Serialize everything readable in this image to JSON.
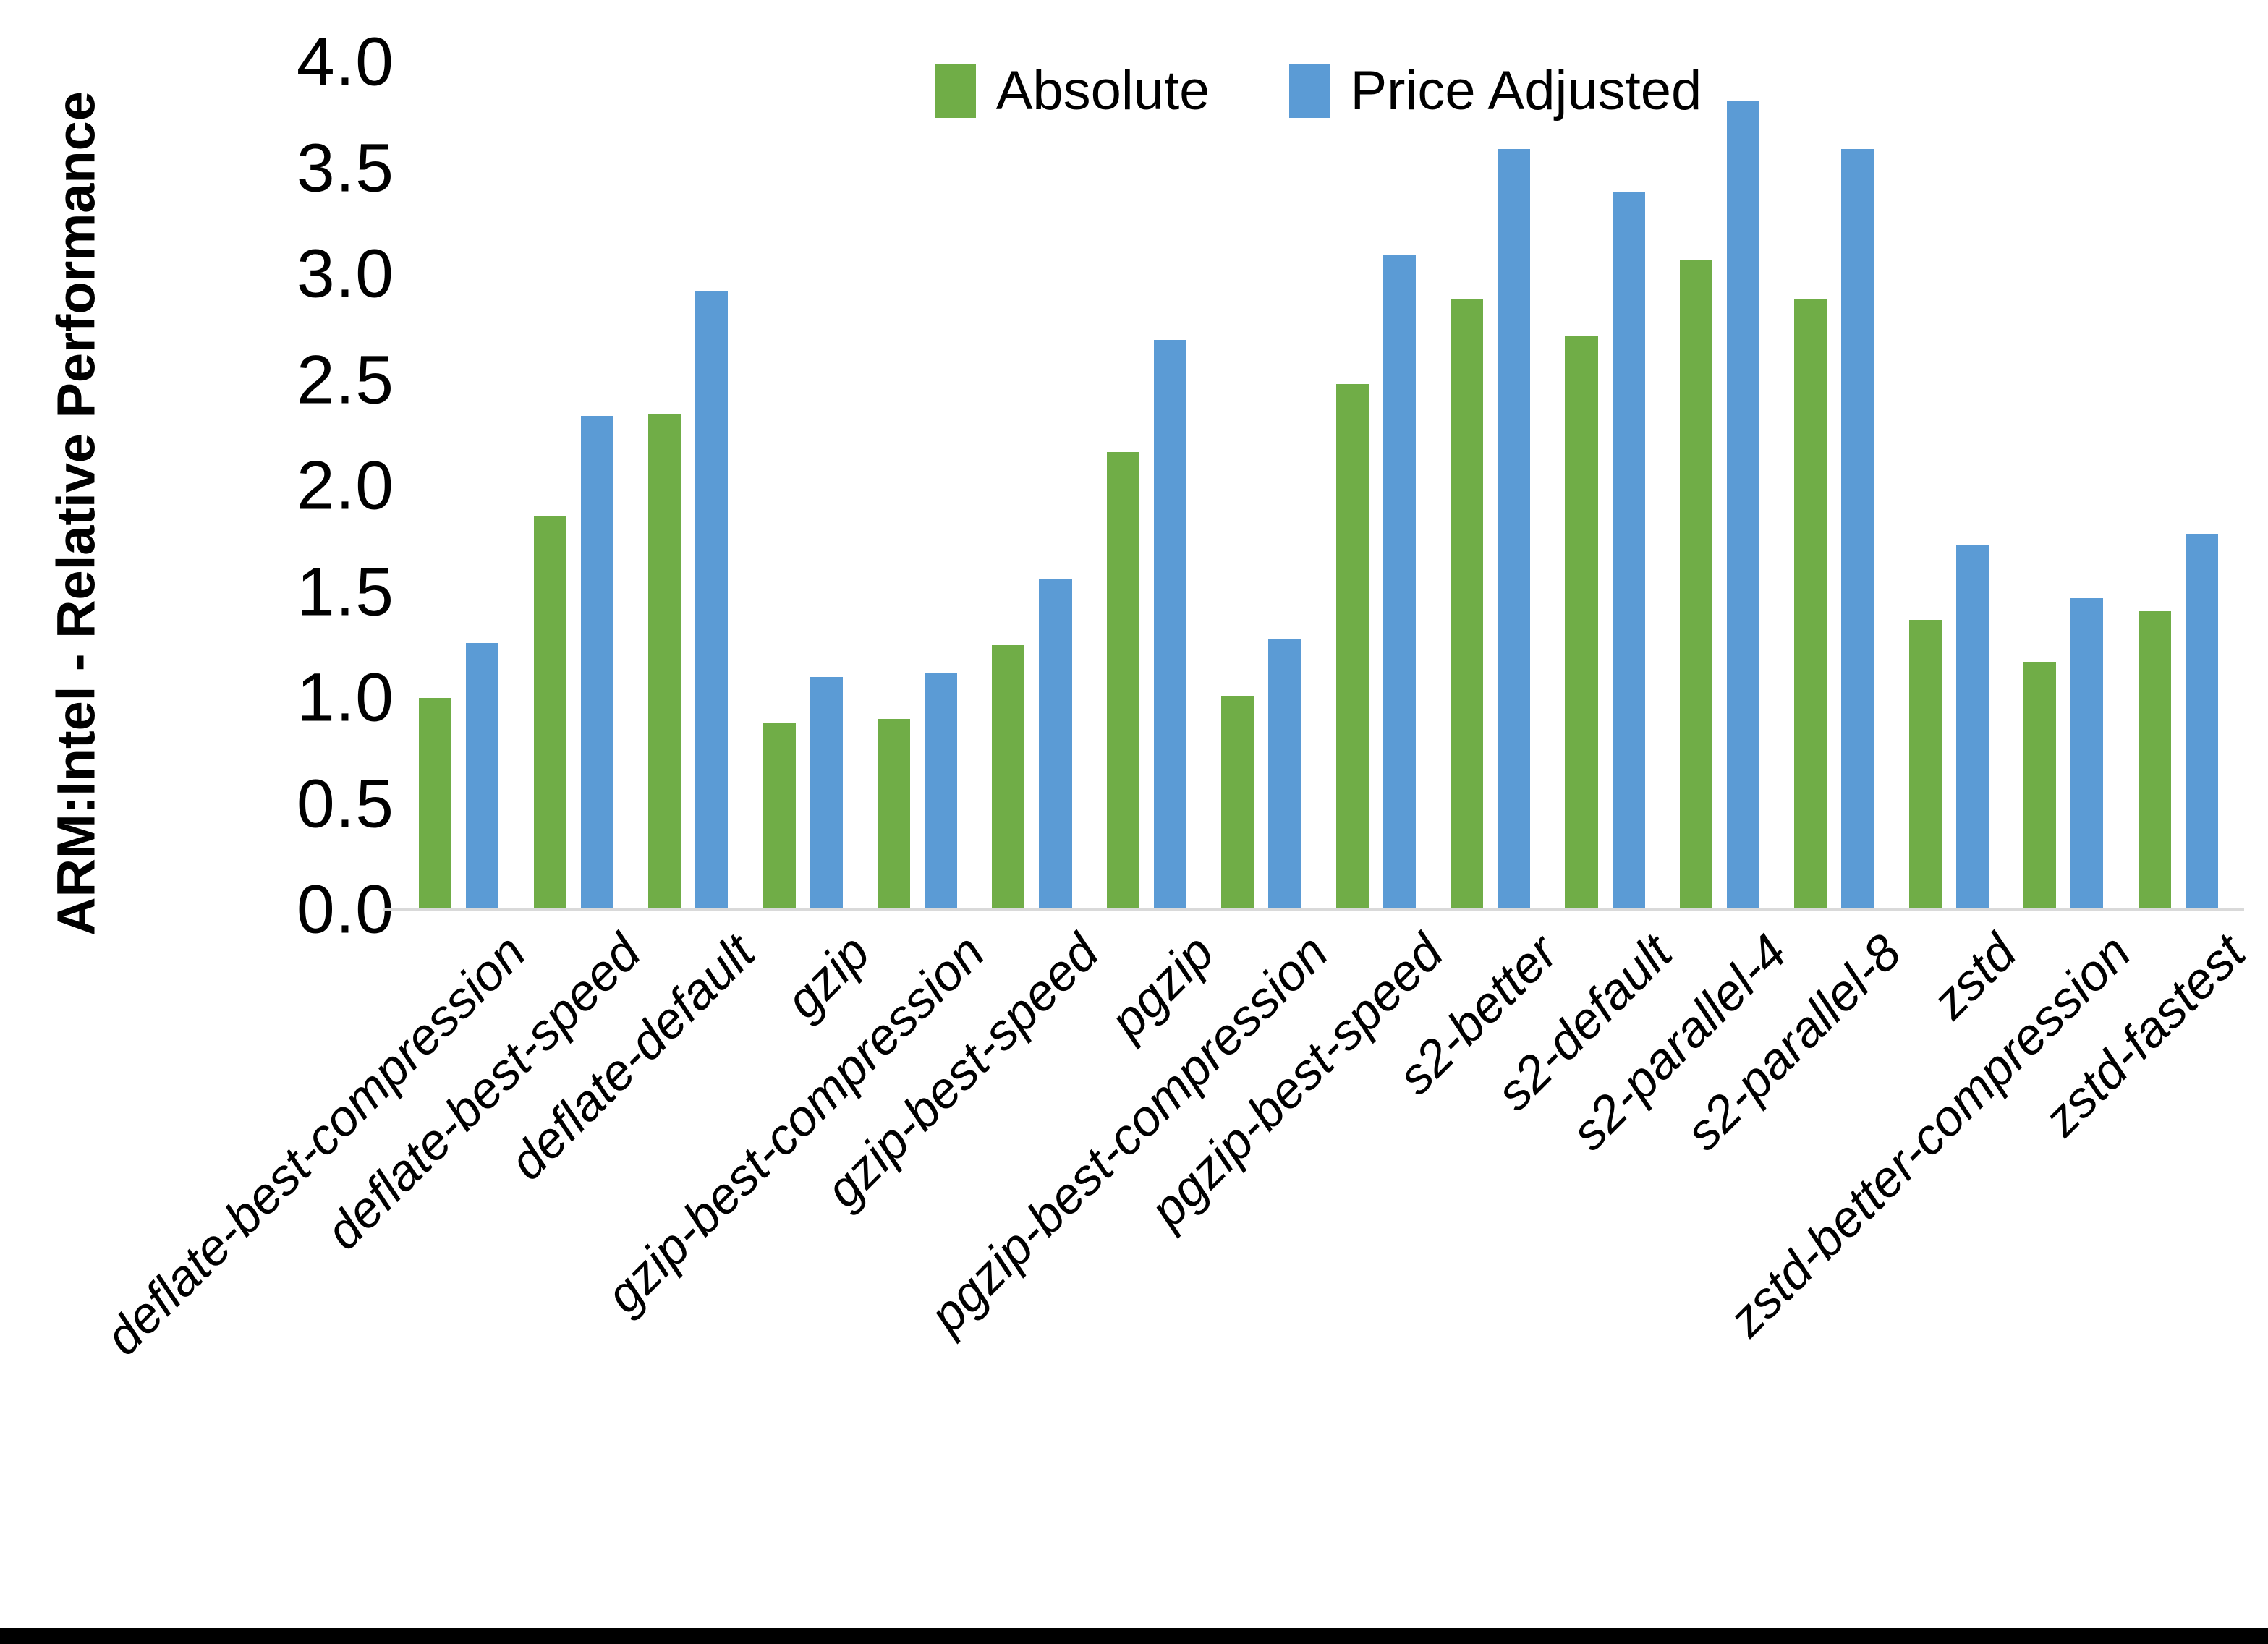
{
  "chart_data": {
    "type": "bar",
    "title": "",
    "xlabel": "",
    "ylabel": "ARM:Intel - Relative Performance",
    "ylim": [
      0.0,
      4.0
    ],
    "y_ticks": [
      "0.0",
      "0.5",
      "1.0",
      "1.5",
      "2.0",
      "2.5",
      "3.0",
      "3.5",
      "4.0"
    ],
    "grid": false,
    "legend_position": "top-center",
    "categories": [
      "deflate-best-compression",
      "deflate-best-speed",
      "deflate-default",
      "gzip",
      "gzip-best-compression",
      "gzip-best-speed",
      "pgzip",
      "pgzip-best-compression",
      "pgzip-best-speed",
      "s2-better",
      "s2-default",
      "s2-parallel-4",
      "s2-parallel-8",
      "zstd",
      "zstd-better-compression",
      "zstd-fastest"
    ],
    "series": [
      {
        "name": "Absolute",
        "color": "#70AD47",
        "values": [
          1.0,
          1.86,
          2.34,
          0.88,
          0.9,
          1.25,
          2.16,
          1.01,
          2.48,
          2.88,
          2.71,
          3.07,
          2.88,
          1.37,
          1.17,
          1.41
        ]
      },
      {
        "name": "Price Adjusted",
        "color": "#5B9BD5",
        "values": [
          1.26,
          2.33,
          2.92,
          1.1,
          1.12,
          1.56,
          2.69,
          1.28,
          3.09,
          3.59,
          3.39,
          3.82,
          3.59,
          1.72,
          1.47,
          1.77
        ]
      }
    ]
  },
  "colors": {
    "background": "#FFFFFF",
    "axis_line": "#D9D9D9",
    "text": "#000000",
    "bottom_bar": "#000000"
  }
}
